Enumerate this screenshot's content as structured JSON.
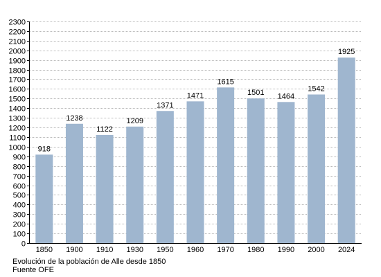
{
  "chart_data": {
    "type": "bar",
    "title": "",
    "xlabel": "",
    "ylabel": "",
    "categories": [
      "1850",
      "1900",
      "1910",
      "1930",
      "1950",
      "1960",
      "1970",
      "1980",
      "1990",
      "2000",
      "2024"
    ],
    "values": [
      918,
      1238,
      1122,
      1209,
      1371,
      1471,
      1615,
      1501,
      1464,
      1542,
      1925
    ],
    "data_labels": [
      "918",
      "1238",
      "1122",
      "1209",
      "1371",
      "1471",
      "1615",
      "1501",
      "1464",
      "1542",
      "1925"
    ],
    "ylim": [
      0,
      2300
    ],
    "yticks": [
      0,
      100,
      200,
      300,
      400,
      500,
      600,
      700,
      800,
      900,
      1000,
      1100,
      1200,
      1300,
      1400,
      1500,
      1600,
      1700,
      1800,
      1900,
      2000,
      2100,
      2200,
      2300
    ],
    "grid": true,
    "legend": "none",
    "colors": {
      "bar": "#9fb6cf",
      "grid": "#b8b8b8",
      "axis": "#000000",
      "text": "#000000"
    }
  },
  "caption": {
    "line1": "Evolución de la población de Alle desde 1850",
    "line2": "Fuente OFE"
  }
}
